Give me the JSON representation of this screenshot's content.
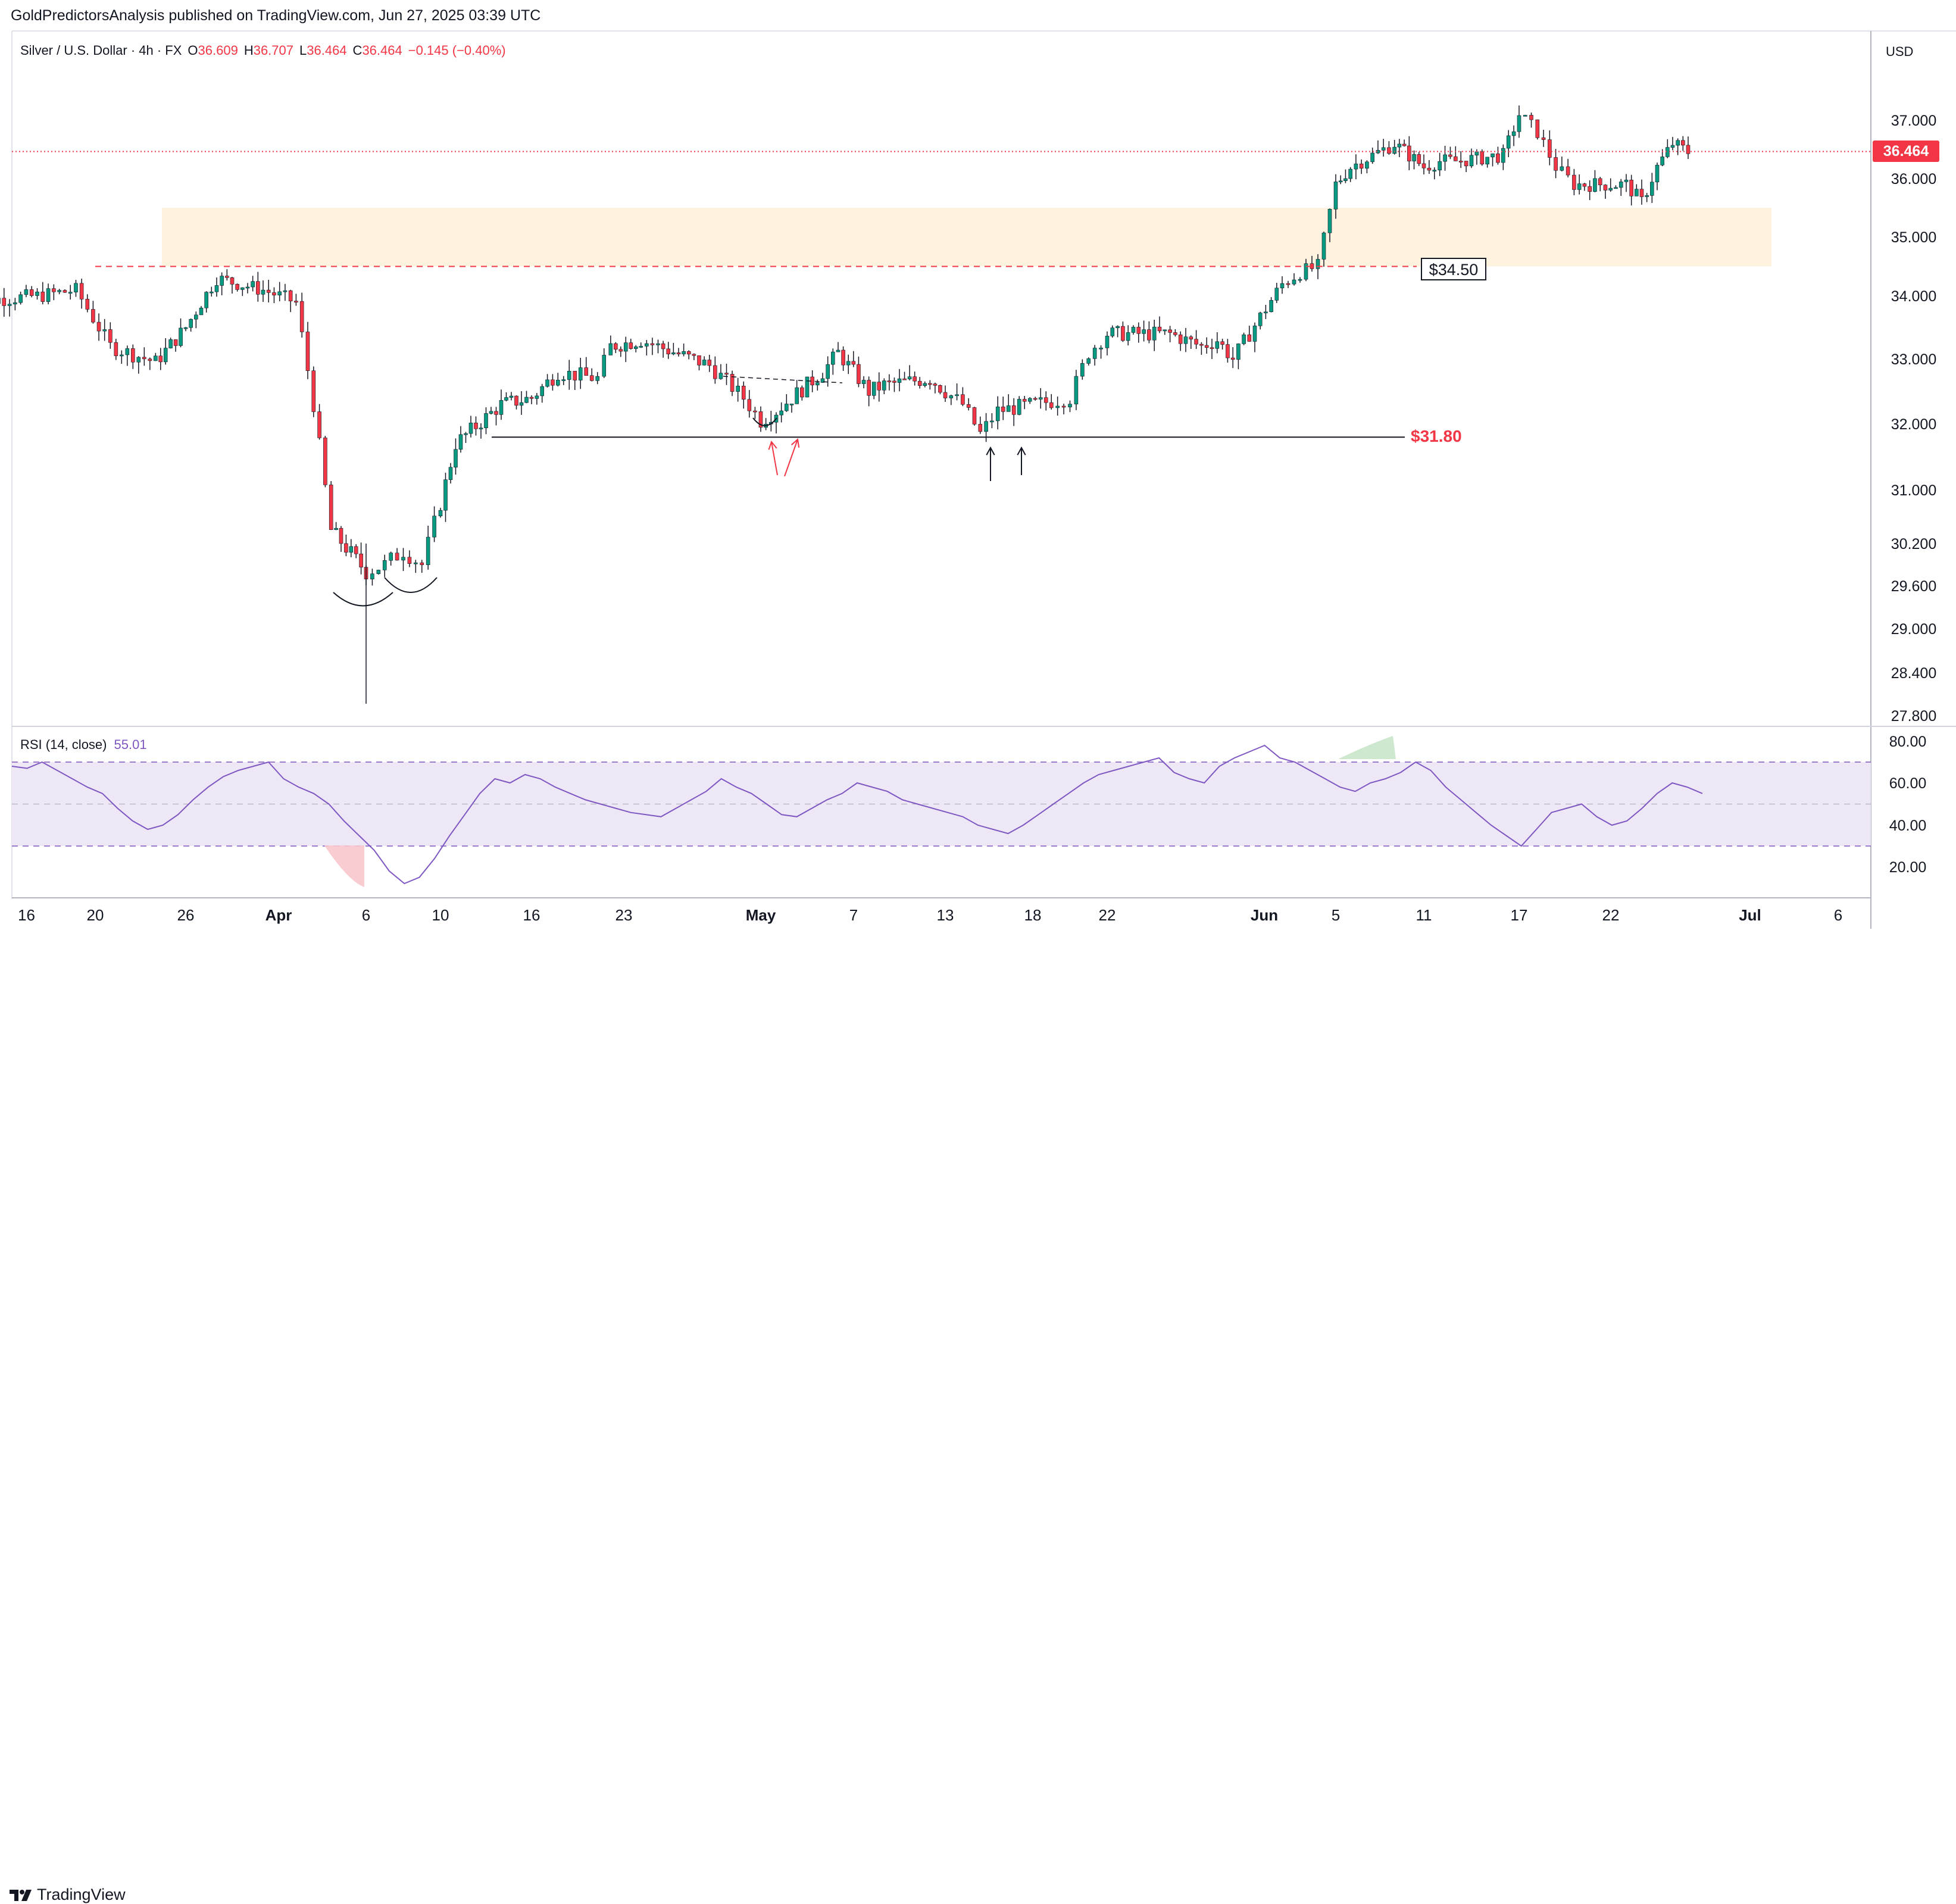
{
  "header": {
    "published_by": "GoldPredictorsAnalysis published on TradingView.com, Jun 27, 2025 03:39 UTC"
  },
  "footer": {
    "brand": "TradingView"
  },
  "legend": {
    "symbol": "Silver / U.S. Dollar · 4h · FX",
    "o_label": "O",
    "o_value": "36.609",
    "h_label": "H",
    "h_value": "36.707",
    "l_label": "L",
    "l_value": "36.464",
    "c_label": "C",
    "c_value": "36.464",
    "change": "−0.145 (−0.40%)"
  },
  "rsi_legend": {
    "label": "RSI (14, close)",
    "value": "55.01"
  },
  "currency": "USD",
  "last_price": "36.464",
  "colors": {
    "up": "#089981",
    "down": "#f23645",
    "rsi_line": "#7e57c2",
    "zone": "#fff3e0",
    "rsi_band": "#ede7f6",
    "price_tag": "#f23645"
  },
  "annotations": {
    "resistance_label": "$34.50",
    "support_label": "$31.80"
  },
  "chart_data": [
    {
      "type": "candlestick",
      "title": "Silver / U.S. Dollar · 4h · FX",
      "price_axis_ticks": [
        "37.000",
        "36.000",
        "35.000",
        "34.000",
        "33.000",
        "32.000",
        "31.000",
        "30.200",
        "29.600",
        "29.000",
        "28.400",
        "27.800"
      ],
      "time_axis_ticks": [
        "16",
        "20",
        "26",
        "Apr",
        "6",
        "10",
        "16",
        "23",
        "May",
        "7",
        "13",
        "18",
        "22",
        "Jun",
        "5",
        "11",
        "17",
        "22",
        "Jul",
        "6"
      ],
      "current_price": 36.464,
      "horizontal_lines": [
        {
          "label": "$34.50",
          "value": 34.5,
          "style": "dashed"
        },
        {
          "label": "$31.80",
          "value": 31.8,
          "style": "solid"
        }
      ],
      "zones": [
        {
          "from": 34.5,
          "to": 35.5
        }
      ],
      "series": [
        {
          "date": "Mar 13",
          "close": 33.9
        },
        {
          "date": "Mar 17",
          "close": 34.0
        },
        {
          "date": "Mar 19",
          "close": 34.1
        },
        {
          "date": "Mar 21",
          "close": 33.2
        },
        {
          "date": "Mar 24",
          "close": 32.95
        },
        {
          "date": "Mar 26",
          "close": 33.5
        },
        {
          "date": "Mar 28",
          "close": 34.3
        },
        {
          "date": "Mar 31",
          "close": 34.1
        },
        {
          "date": "Apr 2",
          "close": 33.9
        },
        {
          "date": "Apr 3",
          "close": 32.3
        },
        {
          "date": "Apr 4",
          "close": 30.4
        },
        {
          "date": "Apr 6",
          "close": 29.8
        },
        {
          "date": "Apr 7",
          "close": 29.9
        },
        {
          "date": "Apr 8",
          "close": 30.1
        },
        {
          "date": "Apr 9",
          "close": 29.9
        },
        {
          "date": "Apr 10",
          "close": 30.8
        },
        {
          "date": "Apr 11",
          "close": 31.7
        },
        {
          "date": "Apr 14",
          "close": 32.3
        },
        {
          "date": "Apr 16",
          "close": 32.4
        },
        {
          "date": "Apr 18",
          "close": 32.8
        },
        {
          "date": "Apr 21",
          "close": 32.7
        },
        {
          "date": "Apr 22",
          "close": 33.2
        },
        {
          "date": "Apr 24",
          "close": 33.3
        },
        {
          "date": "Apr 25",
          "close": 33.2
        },
        {
          "date": "Apr 28",
          "close": 32.9
        },
        {
          "date": "Apr 30",
          "close": 32.4
        },
        {
          "date": "May 1",
          "close": 32.05
        },
        {
          "date": "May 2",
          "close": 32.2
        },
        {
          "date": "May 5",
          "close": 32.8
        },
        {
          "date": "May 6",
          "close": 33.1
        },
        {
          "date": "May 8",
          "close": 32.5
        },
        {
          "date": "May 9",
          "close": 32.6
        },
        {
          "date": "May 12",
          "close": 32.7
        },
        {
          "date": "May 13",
          "close": 32.5
        },
        {
          "date": "May 14",
          "close": 32.3
        },
        {
          "date": "May 15",
          "close": 31.85
        },
        {
          "date": "May 16",
          "close": 32.2
        },
        {
          "date": "May 19",
          "close": 32.35
        },
        {
          "date": "May 20",
          "close": 32.4
        },
        {
          "date": "May 21",
          "close": 33.1
        },
        {
          "date": "May 22",
          "close": 33.4
        },
        {
          "date": "May 26",
          "close": 33.4
        },
        {
          "date": "May 28",
          "close": 33.2
        },
        {
          "date": "May 29",
          "close": 33.3
        },
        {
          "date": "May 30",
          "close": 33.0
        },
        {
          "date": "Jun 2",
          "close": 34.2
        },
        {
          "date": "Jun 3",
          "close": 34.4
        },
        {
          "date": "Jun 4",
          "close": 34.5
        },
        {
          "date": "Jun 5",
          "close": 35.9
        },
        {
          "date": "Jun 6",
          "close": 36.2
        },
        {
          "date": "Jun 9",
          "close": 36.6
        },
        {
          "date": "Jun 10",
          "close": 36.4
        },
        {
          "date": "Jun 11",
          "close": 36.2
        },
        {
          "date": "Jun 12",
          "close": 36.3
        },
        {
          "date": "Jun 13",
          "close": 36.3
        },
        {
          "date": "Jun 16",
          "close": 36.4
        },
        {
          "date": "Jun 17",
          "close": 37.1
        },
        {
          "date": "Jun 18",
          "close": 36.8
        },
        {
          "date": "Jun 19",
          "close": 36.2
        },
        {
          "date": "Jun 20",
          "close": 35.9
        },
        {
          "date": "Jun 23",
          "close": 35.9
        },
        {
          "date": "Jun 24",
          "close": 35.6
        },
        {
          "date": "Jun 25",
          "close": 36.2
        },
        {
          "date": "Jun 26",
          "close": 36.6
        },
        {
          "date": "Jun 27",
          "close": 36.46
        }
      ]
    },
    {
      "type": "line",
      "title": "RSI (14, close)",
      "y_ticks": [
        "80.00",
        "60.00",
        "40.00",
        "20.00"
      ],
      "band": [
        30,
        70
      ],
      "midline": 50,
      "current_value": 55.01,
      "values": [
        68,
        67,
        70,
        66,
        62,
        58,
        55,
        48,
        42,
        38,
        40,
        45,
        52,
        58,
        63,
        66,
        68,
        70,
        62,
        58,
        55,
        50,
        42,
        35,
        28,
        18,
        12,
        15,
        24,
        35,
        45,
        55,
        62,
        60,
        64,
        62,
        58,
        55,
        52,
        50,
        48,
        46,
        45,
        44,
        48,
        52,
        56,
        62,
        58,
        55,
        50,
        45,
        44,
        48,
        52,
        55,
        60,
        58,
        56,
        52,
        50,
        48,
        46,
        44,
        40,
        38,
        36,
        40,
        45,
        50,
        55,
        60,
        64,
        66,
        68,
        70,
        72,
        65,
        62,
        60,
        68,
        72,
        75,
        78,
        72,
        70,
        66,
        62,
        58,
        56,
        60,
        62,
        65,
        70,
        66,
        58,
        52,
        46,
        40,
        35,
        30,
        38,
        46,
        48,
        50,
        44,
        40,
        42,
        48,
        55,
        60,
        58,
        55
      ]
    }
  ]
}
